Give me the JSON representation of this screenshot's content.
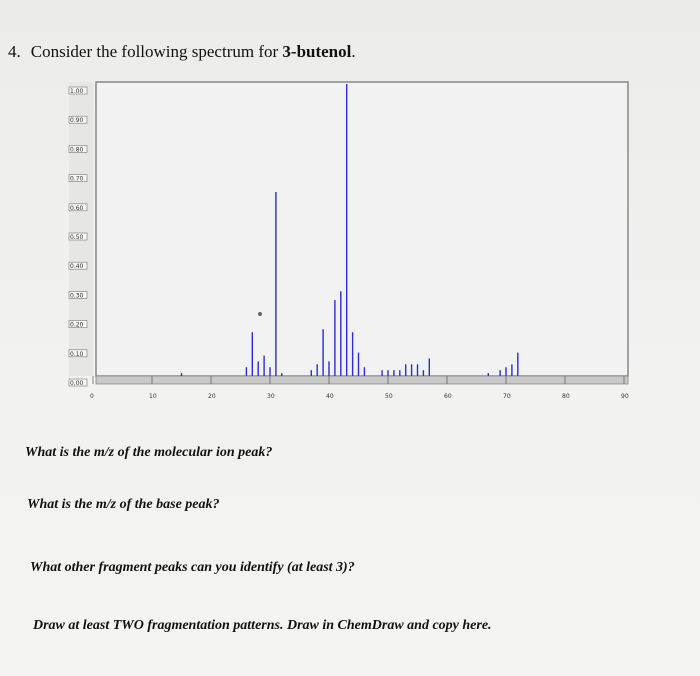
{
  "question": {
    "number": "4.",
    "text_before": "Consider the following spectrum for ",
    "compound": "3-butenol",
    "text_after": "."
  },
  "chart_data": {
    "type": "bar",
    "title": "",
    "xlabel": "",
    "ylabel": "",
    "xlim": [
      0,
      90
    ],
    "ylim": [
      0,
      1.0
    ],
    "x_ticks": [
      "0",
      "10",
      "20",
      "30",
      "40",
      "50",
      "60",
      "70",
      "80",
      "90"
    ],
    "y_ticks": [
      "0.00",
      "0.10",
      "0.20",
      "0.30",
      "0.40",
      "0.50",
      "0.60",
      "0.70",
      "0.80",
      "0.90",
      "1.00"
    ],
    "peaks": [
      {
        "mz": 15,
        "intensity": 0.01
      },
      {
        "mz": 26,
        "intensity": 0.03
      },
      {
        "mz": 27,
        "intensity": 0.15
      },
      {
        "mz": 28,
        "intensity": 0.05
      },
      {
        "mz": 29,
        "intensity": 0.07
      },
      {
        "mz": 30,
        "intensity": 0.03
      },
      {
        "mz": 31,
        "intensity": 0.63
      },
      {
        "mz": 32,
        "intensity": 0.01
      },
      {
        "mz": 37,
        "intensity": 0.02
      },
      {
        "mz": 38,
        "intensity": 0.04
      },
      {
        "mz": 39,
        "intensity": 0.16
      },
      {
        "mz": 40,
        "intensity": 0.05
      },
      {
        "mz": 41,
        "intensity": 0.26
      },
      {
        "mz": 42,
        "intensity": 0.29
      },
      {
        "mz": 43,
        "intensity": 1.0
      },
      {
        "mz": 44,
        "intensity": 0.15
      },
      {
        "mz": 45,
        "intensity": 0.08
      },
      {
        "mz": 46,
        "intensity": 0.03
      },
      {
        "mz": 49,
        "intensity": 0.02
      },
      {
        "mz": 50,
        "intensity": 0.02
      },
      {
        "mz": 51,
        "intensity": 0.02
      },
      {
        "mz": 52,
        "intensity": 0.02
      },
      {
        "mz": 53,
        "intensity": 0.04
      },
      {
        "mz": 54,
        "intensity": 0.04
      },
      {
        "mz": 55,
        "intensity": 0.04
      },
      {
        "mz": 56,
        "intensity": 0.02
      },
      {
        "mz": 57,
        "intensity": 0.06
      },
      {
        "mz": 67,
        "intensity": 0.01
      },
      {
        "mz": 69,
        "intensity": 0.02
      },
      {
        "mz": 70,
        "intensity": 0.03
      },
      {
        "mz": 71,
        "intensity": 0.04
      },
      {
        "mz": 72,
        "intensity": 0.08
      }
    ]
  },
  "prompts": {
    "molecular_ion": "What is the m/z of the molecular ion peak?",
    "base_peak": "What is the m/z of the base peak?",
    "fragments": "What other fragment peaks can you identify (at least 3)?",
    "fragmentation": "Draw at least TWO fragmentation patterns. Draw in ChemDraw and copy here."
  }
}
